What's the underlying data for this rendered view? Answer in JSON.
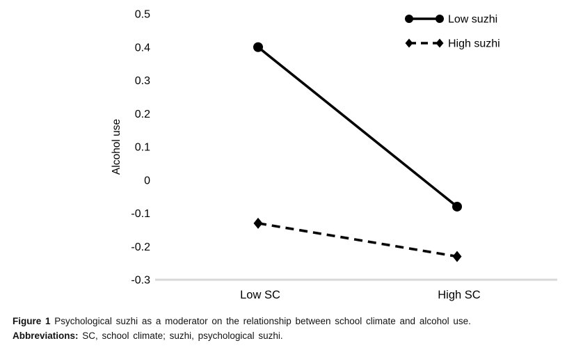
{
  "figure": {
    "caption_label": "Figure 1",
    "caption_text": "Psychological suzhi as a moderator on the relationship between school climate and alcohol use.",
    "abbrev_label": "Abbreviations:",
    "abbrev_text": "SC, school climate; suzhi, psychological suzhi."
  },
  "chart_data": {
    "type": "line",
    "title": "",
    "xlabel": "",
    "ylabel": "Alcohol use",
    "categories": [
      "Low SC",
      "High SC"
    ],
    "series": [
      {
        "name": "Low suzhi",
        "values": [
          0.4,
          -0.08
        ],
        "line_style": "solid",
        "marker": "circle"
      },
      {
        "name": "High suzhi",
        "values": [
          -0.13,
          -0.23
        ],
        "line_style": "dashed",
        "marker": "diamond"
      }
    ],
    "ylim": [
      -0.3,
      0.5
    ],
    "yticks": [
      0.5,
      0.4,
      0.3,
      0.2,
      0.1,
      0,
      -0.1,
      -0.2,
      -0.3
    ],
    "grid": false,
    "legend_position": "top-right",
    "series_color": "#000000",
    "axis_color": "#d9d9d9"
  }
}
